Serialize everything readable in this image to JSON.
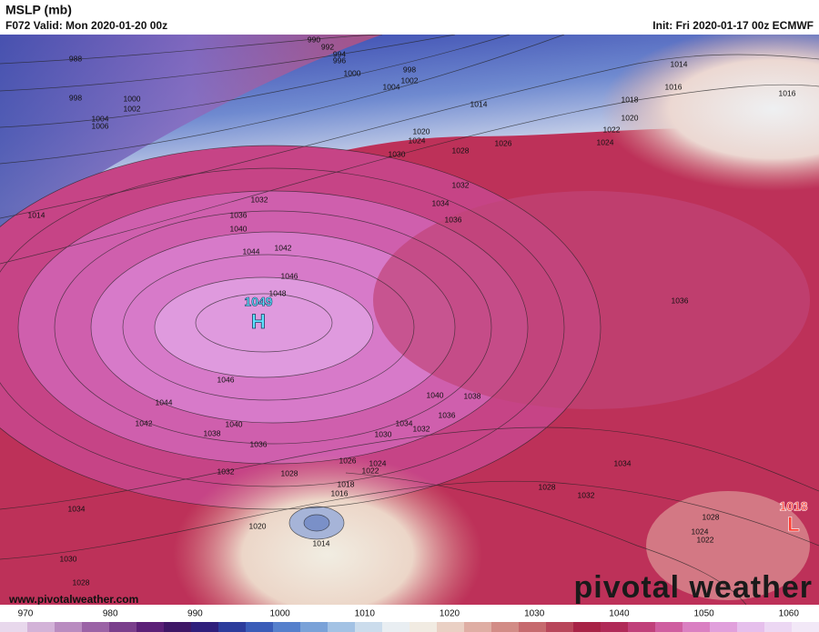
{
  "header": {
    "title": "MSLP (mb)",
    "valid": "F072 Valid: Mon 2020-01-20 00z",
    "init": "Init: Fri 2020-01-17 00z ECMWF"
  },
  "map": {
    "contour_labels": [
      "990",
      "992",
      "994",
      "996",
      "988",
      "1000",
      "998",
      "1002",
      "1004",
      "1014",
      "1016",
      "1016",
      "998",
      "1000",
      "1002",
      "1004",
      "1006",
      "1014",
      "1018",
      "1020",
      "1022",
      "1024",
      "1020",
      "1024",
      "1026",
      "1028",
      "1030",
      "1032",
      "1034",
      "1036",
      "1014",
      "1032",
      "1036",
      "1040",
      "1044",
      "1042",
      "1046",
      "1048",
      "1046",
      "1044",
      "1042",
      "1040",
      "1038",
      "1036",
      "1036",
      "1040",
      "1038",
      "1036",
      "1034",
      "1032",
      "1030",
      "1032",
      "1028",
      "1026",
      "1024",
      "1022",
      "1018",
      "1016",
      "1014",
      "1020",
      "1028",
      "1032",
      "1034",
      "1034",
      "1030",
      "1028",
      "1028",
      "1024",
      "1022"
    ],
    "high": {
      "value": "1049",
      "letter": "H"
    },
    "low": {
      "value": "1018",
      "letter": "L"
    },
    "website": "www.pivotalweather.com",
    "brand": "pivotal weather"
  },
  "colorbar": {
    "ticks": [
      "970",
      "980",
      "990",
      "1000",
      "1010",
      "1020",
      "1030",
      "1040",
      "1050",
      "1060"
    ],
    "colors": [
      "#e8d8ec",
      "#d3b3d8",
      "#b98cc0",
      "#9b63a6",
      "#7a3f8c",
      "#5b2077",
      "#3e1766",
      "#2f1f7c",
      "#2c3c9c",
      "#3a5cb8",
      "#5680cc",
      "#7aa2d8",
      "#a3c2e4",
      "#cbdcec",
      "#e9eef2",
      "#f1ebe2",
      "#ead0c4",
      "#dfaea4",
      "#d28c86",
      "#c66a6e",
      "#b8465a",
      "#a82346",
      "#b02a58",
      "#c0407a",
      "#cf5ea0",
      "#da80c2",
      "#e1a0dc",
      "#e6bfec",
      "#ecd7f3",
      "#f2e8f7"
    ]
  }
}
